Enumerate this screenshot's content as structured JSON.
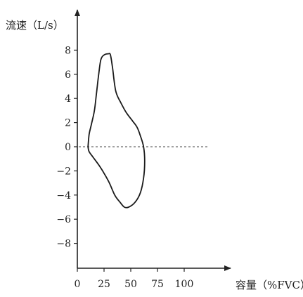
{
  "chart_data": {
    "type": "line",
    "title": "",
    "ylabel": "流速（L/s）",
    "xlabel": "容量（%FVC）",
    "xlim": [
      0,
      100
    ],
    "ylim": [
      -8,
      8
    ],
    "x_ticks": [
      0,
      25,
      50,
      75,
      100
    ],
    "x_tick_labels": [
      "0",
      "25",
      "50",
      "75",
      "100"
    ],
    "y_ticks": [
      8,
      6,
      4,
      2,
      0,
      -2,
      -4,
      -6,
      -8
    ],
    "y_tick_labels": [
      "8",
      "6",
      "4",
      "2",
      "0",
      "−2",
      "−4",
      "−6",
      "−8"
    ],
    "grid": false,
    "reference_line": {
      "y": 0,
      "style": "dashed"
    },
    "series": [
      {
        "points": [
          [
            10,
            0
          ],
          [
            11,
            1.0
          ],
          [
            13,
            1.8
          ],
          [
            16,
            3.0
          ],
          [
            18,
            4.5
          ],
          [
            20,
            6.0
          ],
          [
            22,
            7.2
          ],
          [
            25,
            7.6
          ],
          [
            29,
            7.7
          ],
          [
            31,
            7.6
          ],
          [
            33,
            6.5
          ],
          [
            36,
            4.6
          ],
          [
            41,
            3.6
          ],
          [
            46,
            2.8
          ],
          [
            52,
            2.1
          ],
          [
            56,
            1.6
          ],
          [
            59,
            0.9
          ],
          [
            62,
            0
          ],
          [
            63,
            -1.2
          ],
          [
            62,
            -2.6
          ],
          [
            59,
            -3.8
          ],
          [
            54,
            -4.6
          ],
          [
            48,
            -5.0
          ],
          [
            44,
            -5.0
          ],
          [
            40,
            -4.6
          ],
          [
            35,
            -4.0
          ],
          [
            30,
            -3.0
          ],
          [
            25,
            -2.2
          ],
          [
            20,
            -1.5
          ],
          [
            15,
            -0.9
          ],
          [
            11,
            -0.4
          ],
          [
            10,
            0
          ]
        ]
      }
    ]
  }
}
